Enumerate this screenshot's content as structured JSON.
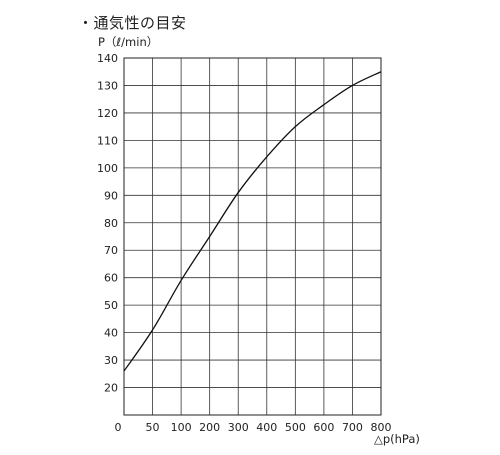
{
  "chart_data": {
    "type": "line",
    "title": "・通気性の目安",
    "ylabel": "P（ℓ/min）",
    "xlabel": "△p(hPa)",
    "xlim": [
      0,
      800
    ],
    "ylim": [
      10,
      140
    ],
    "x_ticks": [
      0,
      50,
      100,
      200,
      300,
      400,
      500,
      600,
      700,
      800
    ],
    "y_ticks": [
      20,
      30,
      40,
      50,
      60,
      70,
      80,
      90,
      100,
      110,
      120,
      130,
      140
    ],
    "grid": true,
    "legend": "none",
    "series": [
      {
        "x": [
          0,
          50,
          100,
          200,
          300,
          400,
          500,
          600,
          700,
          800
        ],
        "y": [
          26,
          41,
          59,
          75,
          91,
          104,
          115,
          123,
          130,
          135
        ]
      }
    ]
  }
}
